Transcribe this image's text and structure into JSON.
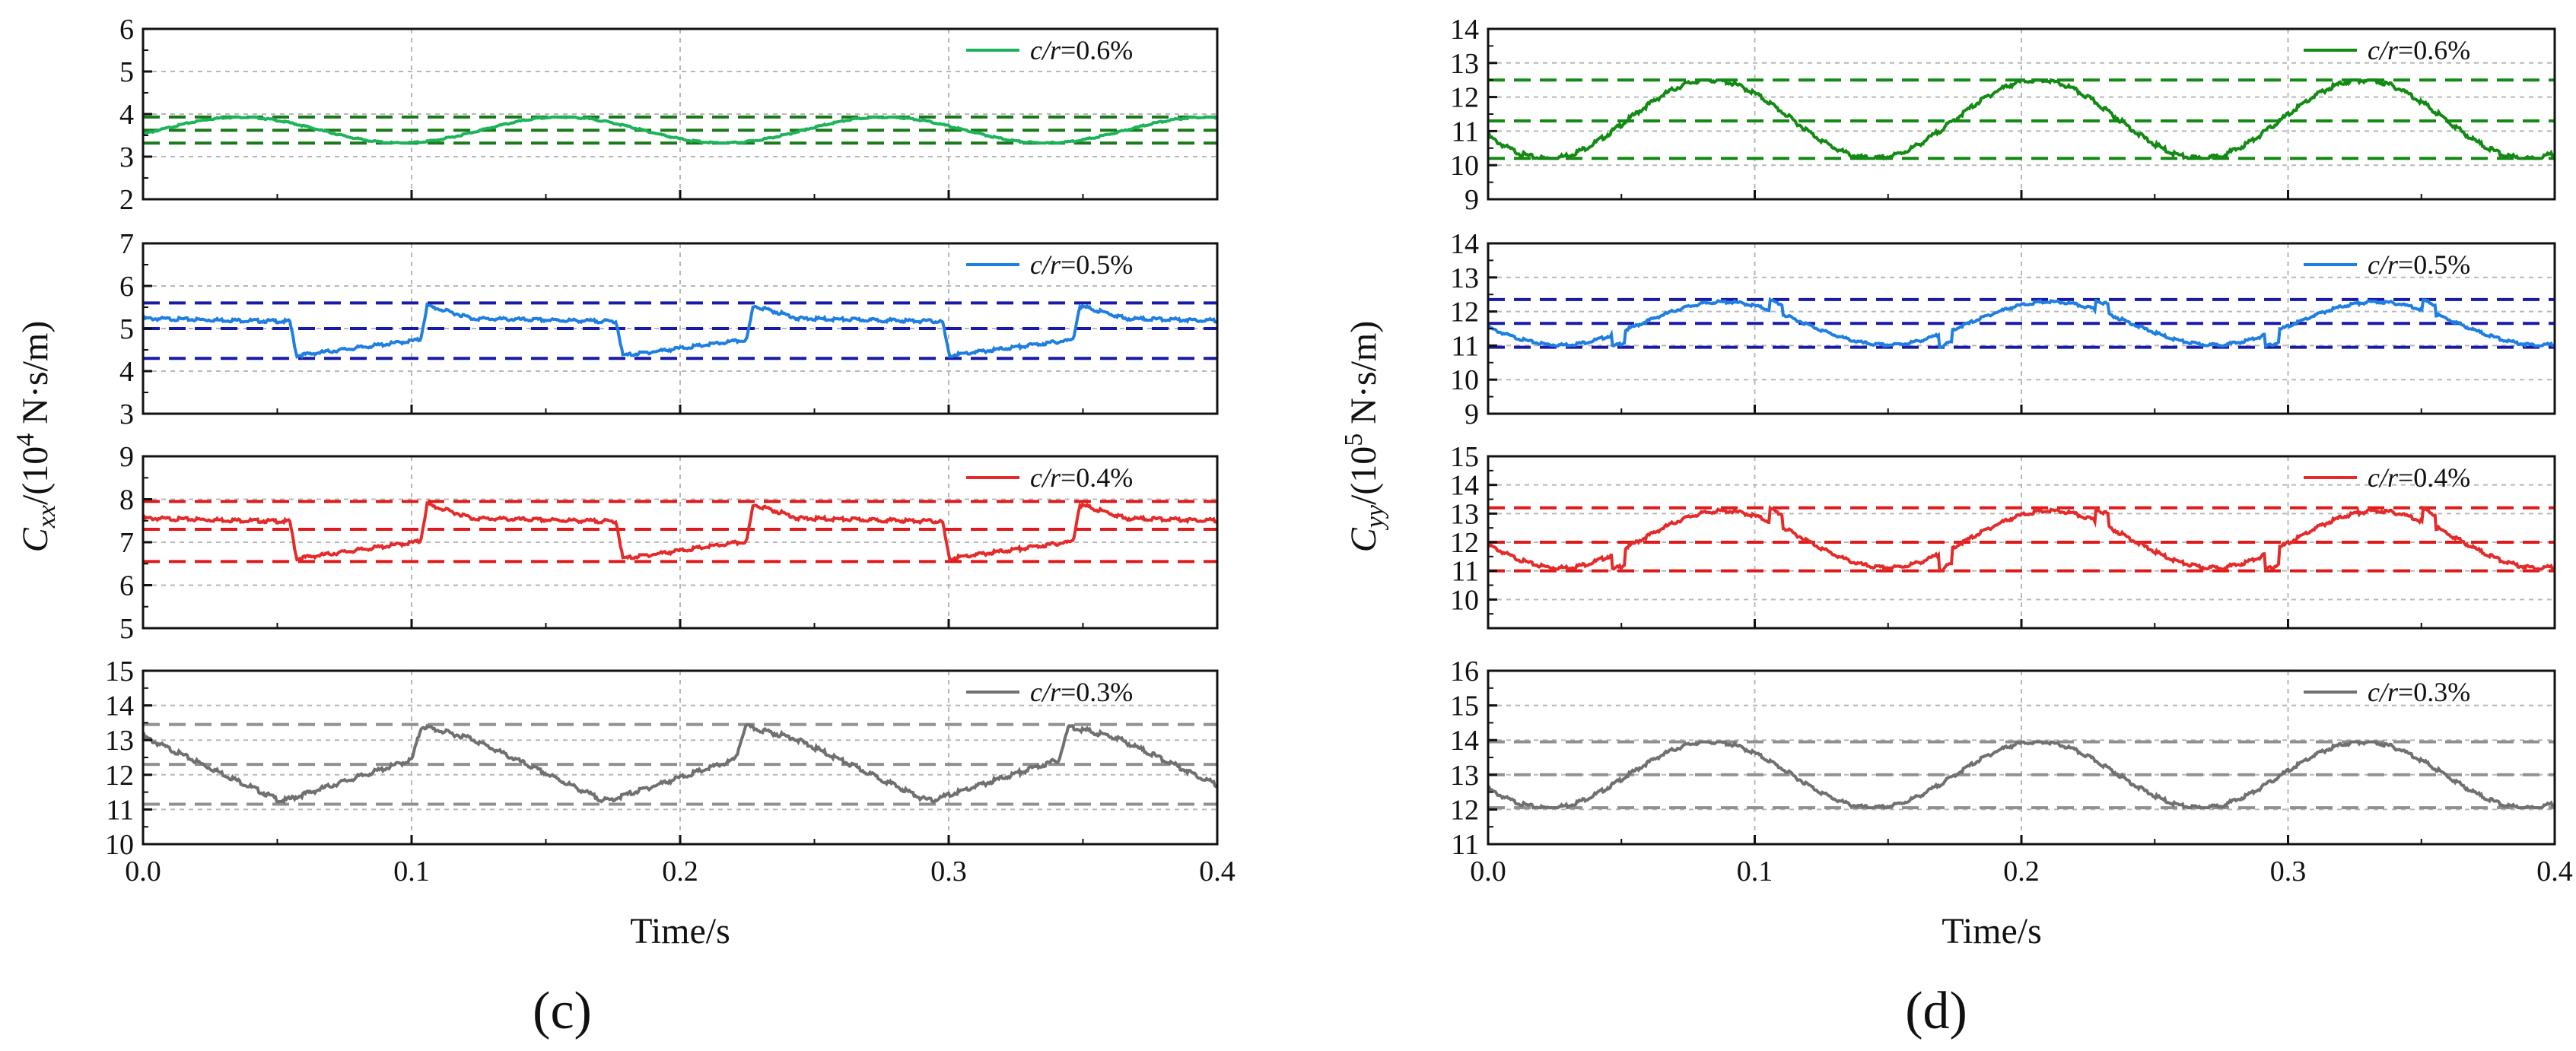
{
  "figure": {
    "caption_left": "(c)",
    "caption_right": "(d)",
    "xlabel": "Time/s",
    "x_ticks": [
      "0.0",
      "0.1",
      "0.2",
      "0.3",
      "0.4"
    ]
  },
  "chart_data": [
    {
      "type": "line",
      "id": "c",
      "ylabel_main": "C",
      "ylabel_sub": "xx",
      "ylabel_rest": "/(10",
      "ylabel_exp": "4",
      "ylabel_unit": " N·s/m)",
      "xlim": [
        0,
        0.4
      ],
      "panels": [
        {
          "legend": "c/r=0.6%",
          "legend_italic": "c/r",
          "legend_value": "=0.6%",
          "color": "#1db35a",
          "dash_color": "#1a7a1a",
          "ylim": [
            2,
            6
          ],
          "ticks": [
            2,
            3,
            4,
            5,
            6
          ],
          "ticklabels": [
            "2",
            "3",
            "4",
            "5",
            "6"
          ],
          "hlines": [
            3.32,
            3.62,
            3.93
          ],
          "period": 0.12,
          "phase": 0.0,
          "min": 3.32,
          "max": 3.93,
          "shape": "smooth"
        },
        {
          "legend": "c/r=0.5%",
          "legend_italic": "c/r",
          "legend_value": "=0.5%",
          "color": "#1f7fe0",
          "dash_color": "#1a1aa8",
          "ylim": [
            3,
            7
          ],
          "ticks": [
            3,
            4,
            5,
            6,
            7
          ],
          "ticklabels": [
            "3",
            "4",
            "5",
            "6",
            "7"
          ],
          "hlines": [
            4.3,
            5.0,
            5.6
          ],
          "period": 0.1215,
          "phase": 0.0,
          "min": 4.3,
          "max": 5.6,
          "shape": "jump"
        },
        {
          "legend": "c/r=0.4%",
          "legend_italic": "c/r",
          "legend_value": "=0.4%",
          "color": "#e52a2a",
          "dash_color": "#e01a1a",
          "ylim": [
            5,
            9
          ],
          "ticks": [
            5,
            6,
            7,
            8,
            9
          ],
          "ticklabels": [
            "5",
            "6",
            "7",
            "8",
            "9"
          ],
          "hlines": [
            6.55,
            7.3,
            7.95
          ],
          "period": 0.1215,
          "phase": 0.0,
          "min": 6.55,
          "max": 7.95,
          "shape": "jump"
        },
        {
          "legend": "c/r=0.3%",
          "legend_italic": "c/r",
          "legend_value": "=0.3%",
          "color": "#707070",
          "dash_color": "#909090",
          "ylim": [
            10,
            15
          ],
          "ticks": [
            10,
            11,
            12,
            13,
            14,
            15
          ],
          "ticklabels": [
            "10",
            "11",
            "12",
            "13",
            "14",
            "15"
          ],
          "hlines": [
            11.15,
            12.3,
            13.45
          ],
          "period": 0.1205,
          "phase": 0.0,
          "min": 11.15,
          "max": 13.45,
          "shape": "saw"
        }
      ]
    },
    {
      "type": "line",
      "id": "d",
      "ylabel_main": "C",
      "ylabel_sub": "yy",
      "ylabel_rest": "/(10",
      "ylabel_exp": "5",
      "ylabel_unit": " N·s/m)",
      "xlim": [
        0,
        0.4
      ],
      "panels": [
        {
          "legend": "c/r=0.6%",
          "legend_italic": "c/r",
          "legend_value": "=0.6%",
          "color": "#138a13",
          "dash_color": "#138a13",
          "ylim": [
            9,
            14
          ],
          "ticks": [
            9,
            10,
            11,
            12,
            13,
            14
          ],
          "ticklabels": [
            "9",
            "10",
            "11",
            "12",
            "13",
            "14"
          ],
          "hlines": [
            10.2,
            11.3,
            12.5
          ],
          "period": 0.1225,
          "phase": 0.0,
          "min": 10.2,
          "max": 12.5,
          "shape": "sine"
        },
        {
          "legend": "c/r=0.5%",
          "legend_italic": "c/r",
          "legend_value": "=0.5%",
          "color": "#1f7fe0",
          "dash_color": "#1a1aa8",
          "ylim": [
            9,
            14
          ],
          "ticks": [
            9,
            10,
            11,
            12,
            13,
            14
          ],
          "ticklabels": [
            "9",
            "10",
            "11",
            "12",
            "13",
            "14"
          ],
          "hlines": [
            10.95,
            11.65,
            12.35
          ],
          "period": 0.1225,
          "phase": 0.0,
          "min": 10.95,
          "max": 12.35,
          "shape": "bump"
        },
        {
          "legend": "c/r=0.4%",
          "legend_italic": "c/r",
          "legend_value": "=0.4%",
          "color": "#e52a2a",
          "dash_color": "#e01a1a",
          "ylim": [
            9,
            15
          ],
          "ticks": [
            9,
            10,
            11,
            12,
            13,
            14,
            15
          ],
          "ticklabels": [
            "",
            "10",
            "11",
            "12",
            "13",
            "14",
            "15"
          ],
          "hlines": [
            11.0,
            12.0,
            13.2
          ],
          "period": 0.1225,
          "phase": 0.0,
          "min": 11.0,
          "max": 13.2,
          "shape": "bump"
        },
        {
          "legend": "c/r=0.3%",
          "legend_italic": "c/r",
          "legend_value": "=0.3%",
          "color": "#707070",
          "dash_color": "#909090",
          "ylim": [
            11,
            16
          ],
          "ticks": [
            11,
            12,
            13,
            14,
            15,
            16
          ],
          "ticklabels": [
            "11",
            "12",
            "13",
            "14",
            "15",
            "16"
          ],
          "hlines": [
            12.05,
            13.0,
            13.95
          ],
          "period": 0.1225,
          "phase": 0.0,
          "min": 12.05,
          "max": 13.95,
          "shape": "sine"
        }
      ]
    }
  ]
}
